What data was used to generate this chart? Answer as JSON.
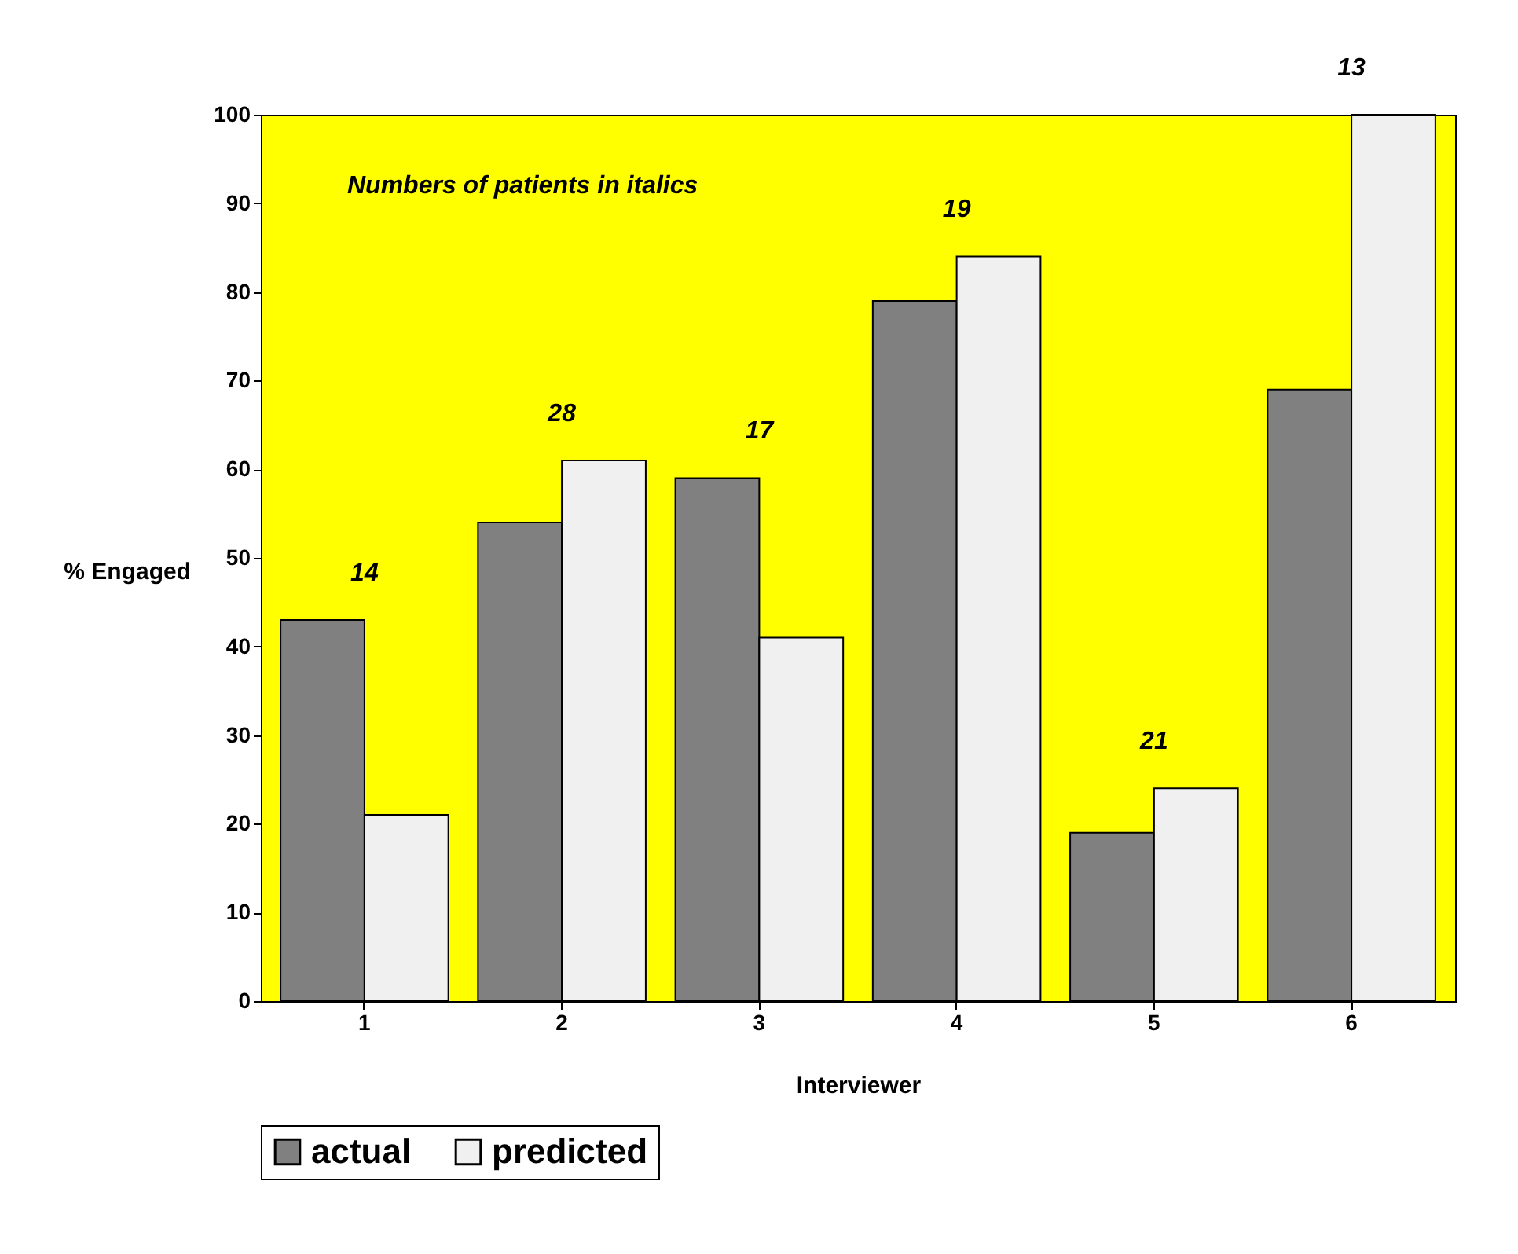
{
  "chart_data": {
    "type": "bar",
    "xlabel": "Interviewer",
    "ylabel": "% Engaged",
    "categories": [
      "1",
      "2",
      "3",
      "4",
      "5",
      "6"
    ],
    "series": [
      {
        "name": "actual",
        "color": "#808080",
        "values": [
          43,
          54,
          59,
          79,
          19,
          69
        ]
      },
      {
        "name": "predicted",
        "color": "#f0f0f0",
        "values": [
          21,
          61,
          41,
          84,
          24,
          100
        ]
      }
    ],
    "ylim": [
      0,
      100
    ],
    "yticks": [
      0,
      10,
      20,
      30,
      40,
      50,
      60,
      70,
      80,
      90,
      100
    ],
    "annotations": [
      "Numbers of patients in italics",
      "14",
      "28",
      "17",
      "19",
      "21",
      "13"
    ],
    "grid": false,
    "legend": "bottom"
  }
}
